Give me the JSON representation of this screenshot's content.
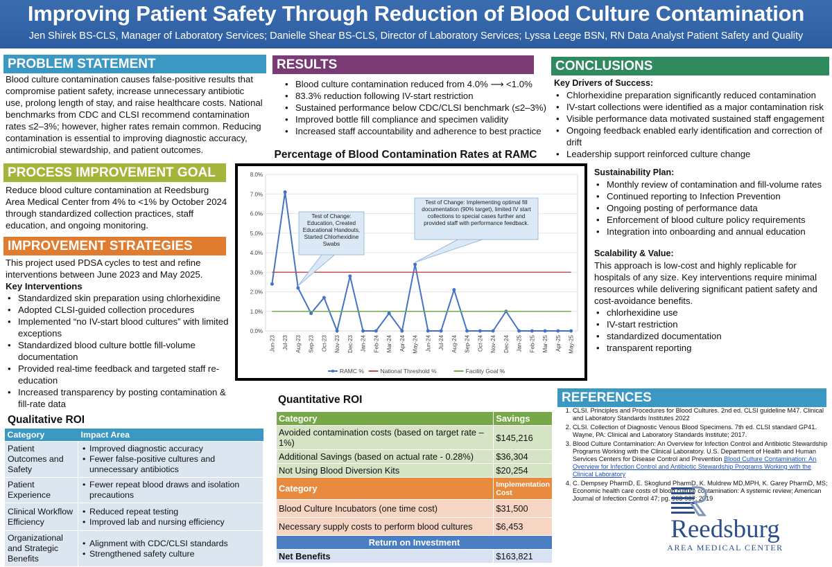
{
  "header": {
    "title": "Improving Patient Safety Through Reduction of Blood Culture Contamination",
    "authors": "Jen Shirek BS-CLS, Manager of Laboratory Services; Danielle Shear BS-CLS, Director of Laboratory Services; Lyssa Leege BSN, RN Data Analyst Patient Safety and Quality"
  },
  "problem": {
    "heading": "PROBLEM STATEMENT",
    "text": "Blood culture contamination causes false-positive results that compromise patient safety, increase unnecessary antibiotic use, prolong length of stay, and raise healthcare costs. National benchmarks from CDC and CLSI recommend contamination rates ≤2–3%; however, higher rates remain common. Reducing contamination is essential to improving diagnostic accuracy, antimicrobial stewardship, and patient outcomes."
  },
  "goal": {
    "heading": "PROCESS IMPROVEMENT GOAL",
    "text": "Reduce blood culture contamination at Reedsburg Area Medical Center from 4% to <1% by October 2024 through standardized collection practices, staff education, and ongoing monitoring."
  },
  "strategies": {
    "heading": "IMPROVEMENT STRATEGIES",
    "intro": "This project used PDSA cycles to test and refine interventions between June 2023 and May 2025.",
    "sub": "Key Interventions",
    "items": [
      "Standardized skin preparation using chlorhexidine",
      "Adopted CLSI-guided collection procedures",
      "Implemented “no IV-start blood cultures” with limited exceptions",
      "Standardized blood culture bottle fill-volume documentation",
      "Provided real-time feedback and targeted staff re-education",
      "Increased transparency by posting contamination & fill-rate data"
    ]
  },
  "qualitative": {
    "title": "Qualitative ROI",
    "col1": "Category",
    "col2": "Impact Area",
    "rows": [
      {
        "category": "Patient Outcomes and Safety",
        "impacts": [
          "Improved diagnostic accuracy",
          "Fewer false-positive cultures and unnecessary antibiotics"
        ]
      },
      {
        "category": "Patient Experience",
        "impacts": [
          "Fewer repeat blood draws and isolation precautions"
        ]
      },
      {
        "category": "Clinical Workflow Efficiency",
        "impacts": [
          "Reduced repeat testing",
          "Improved lab and nursing efficiency"
        ]
      },
      {
        "category": "Organizational and Strategic Benefits",
        "impacts": [
          "Alignment with CDC/CLSI standards",
          "Strengthened safety culture"
        ]
      }
    ]
  },
  "results": {
    "heading": "RESULTS",
    "items": [
      "Blood culture contamination reduced from 4.0% ⟶ <1.0%",
      "83.3% reduction following IV-start restriction",
      "Sustained performance below CDC/CLSI benchmark (≤2–3%)",
      "Improved bottle fill compliance and specimen validity",
      "Increased staff accountability and adherence to best practice"
    ]
  },
  "chart_data": {
    "type": "line",
    "title": "Percentage of Blood Contamination Rates at RAMC",
    "categories": [
      "Jun-23",
      "Jul-23",
      "Aug-23",
      "Sep-23",
      "Oct-23",
      "Nov-23",
      "Dec-23",
      "Jan-24",
      "Feb-24",
      "Mar-24",
      "Apr-24",
      "May-24",
      "Jun-24",
      "Jul-24",
      "Aug-24",
      "Sep-24",
      "Oct-24",
      "Nov-24",
      "Dec-24",
      "Jan-25",
      "Feb-25",
      "Mar-25",
      "Apr-25",
      "May-25"
    ],
    "series": [
      {
        "name": "RAMC %",
        "color": "#4472c4",
        "values": [
          2.4,
          7.1,
          2.2,
          0.9,
          1.7,
          0.0,
          2.8,
          0.0,
          0.0,
          0.9,
          0.0,
          3.4,
          0.0,
          0.0,
          2.1,
          0.0,
          0.0,
          0.0,
          1.0,
          0.0,
          0.0,
          0.0,
          0.0,
          0.0
        ]
      },
      {
        "name": "National Threshold %",
        "color": "#c0504d",
        "values": [
          3,
          3,
          3,
          3,
          3,
          3,
          3,
          3,
          3,
          3,
          3,
          3,
          3,
          3,
          3,
          3,
          3,
          3,
          3,
          3,
          3,
          3,
          3,
          3
        ]
      },
      {
        "name": "Facility Goal %",
        "color": "#70ad47",
        "values": [
          1,
          1,
          1,
          1,
          1,
          1,
          1,
          1,
          1,
          1,
          1,
          1,
          1,
          1,
          1,
          1,
          1,
          1,
          1,
          1,
          1,
          1,
          1,
          1
        ]
      }
    ],
    "yticks": [
      "0.0%",
      "1.0%",
      "2.0%",
      "3.0%",
      "4.0%",
      "5.0%",
      "6.0%",
      "7.0%",
      "8.0%"
    ],
    "ylim": [
      0,
      8
    ],
    "annotations": [
      {
        "text": "Test of Change: Education, Created Educational Handouts, Started Chlorhexidine Swabs",
        "target_index": 2
      },
      {
        "text": "Test of Change: Implementing optimal fill documentation (90% target), limited IV start collections to special cases further and provided staff with performance feedback.",
        "target_index": 11
      }
    ]
  },
  "quantitative": {
    "title": "Quantitative ROI",
    "savings_header": [
      "Category",
      "Savings"
    ],
    "savings_rows": [
      [
        "Avoided contamination costs  (based on target rate – 1%)",
        "$145,216"
      ],
      [
        "Additional Savings (based on actual rate - 0.28%)",
        "$36,304"
      ],
      [
        "Not Using Blood Diversion Kits",
        "$20,254"
      ]
    ],
    "cost_header": [
      "Category",
      "Implementation Cost"
    ],
    "cost_rows": [
      [
        "Blood Culture Incubators (one time cost)",
        "$31,500"
      ],
      [
        "Necessary supply costs to perform blood cultures",
        "$6,453"
      ]
    ],
    "roi_header": "Return on Investment",
    "net": [
      "Net Benefits",
      "$163,821"
    ]
  },
  "conclusions": {
    "heading": "CONCLUSIONS",
    "drivers_title": "Key Drivers of Success:",
    "drivers": [
      "Chlorhexidine preparation significantly reduced contamination",
      "IV-start collections were identified as a major contamination risk",
      "Visible performance data motivated sustained staff engagement",
      "Ongoing feedback enabled early identification and correction of drift",
      "Leadership support reinforced culture change"
    ],
    "sustain_title": "Sustainability Plan:",
    "sustain": [
      "Monthly review of contamination and fill-volume rates",
      "Continued reporting to Infection Prevention",
      "Ongoing posting of performance data",
      "Enforcement of blood culture policy requirements",
      "Integration into onboarding and annual education"
    ],
    "scale_title": "Scalability & Value:",
    "scale_text": "This approach is low-cost and highly replicable for hospitals of any size. Key interventions require minimal resources while delivering significant patient safety and cost-avoidance benefits.",
    "scale_items": [
      "chlorhexidine use",
      "IV-start restriction",
      "standardized documentation",
      "transparent reporting"
    ]
  },
  "references": {
    "heading": "REFERENCES",
    "r1": "CLSI. Principles and Procedures for Blood Cultures. 2nd ed. CLSI guideline M47. Clinical and Laboratory Standards Institutes 2022",
    "r2": "CLSI. Collection of Diagnostic Venous Blood Specimens. 7th ed. CLSI standard GP41. Wayne, PA: Clinical and Laboratory Standards Institute; 2017.",
    "r3_text": "Blood Culture Contamination: An Overview for Infection Control and Antibiotic Stewardship Programs Working with the Clinical Laboratory. U.S. Department of Health and Human Services Centers for Disease Control and Prevention",
    "r3_link": "Blood Culture Contamination: An Overview for Infection Control and Antibiotic Stewardship Programs Working with the Clinical Laboratory",
    "r4": "C. Dempsey PharmD, E. Skoglund PharmD, K. Muldrew MD,MPH, K. Garey PharmD, MS; Economic health care costs of blood culture contamination: A systemic review; American Journal of Infection Control 47; pg. 963-967; 2019"
  },
  "logo": {
    "name": "Reedsburg",
    "sub": "AREA MEDICAL CENTER",
    "color": "#2b4f8c"
  }
}
